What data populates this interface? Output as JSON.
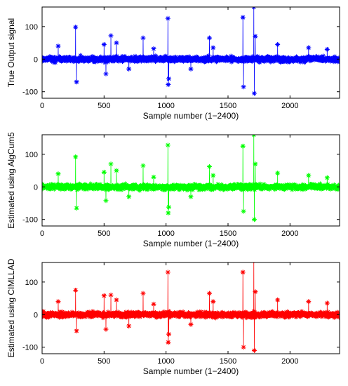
{
  "chart_data": [
    {
      "type": "line",
      "xlabel": "Sample number (1−2400)",
      "ylabel": "True Output signal",
      "xlim": [
        0,
        2400
      ],
      "ylim": [
        -120,
        160
      ],
      "xticks": [
        0,
        500,
        1000,
        1500,
        2000
      ],
      "yticks": [
        -100,
        0,
        100
      ],
      "color": "#0000ff",
      "marker": "*",
      "baseline_amplitude": 12,
      "n_samples": 2400,
      "grid": false,
      "spikes": [
        {
          "x": 270,
          "y": 98
        },
        {
          "x": 278,
          "y": -70
        },
        {
          "x": 500,
          "y": 45
        },
        {
          "x": 515,
          "y": -45
        },
        {
          "x": 555,
          "y": 72
        },
        {
          "x": 600,
          "y": 50
        },
        {
          "x": 815,
          "y": 65
        },
        {
          "x": 1015,
          "y": 125
        },
        {
          "x": 1018,
          "y": -78
        },
        {
          "x": 1022,
          "y": -60
        },
        {
          "x": 1620,
          "y": 128
        },
        {
          "x": 1625,
          "y": -85
        },
        {
          "x": 1708,
          "y": 160
        },
        {
          "x": 1712,
          "y": -105
        },
        {
          "x": 1720,
          "y": 70
        },
        {
          "x": 1350,
          "y": 65
        },
        {
          "x": 1380,
          "y": 35
        },
        {
          "x": 2150,
          "y": 35
        },
        {
          "x": 130,
          "y": 40
        },
        {
          "x": 900,
          "y": 32
        },
        {
          "x": 1200,
          "y": -30
        },
        {
          "x": 1900,
          "y": 45
        },
        {
          "x": 2300,
          "y": 30
        },
        {
          "x": 700,
          "y": -30
        }
      ]
    },
    {
      "type": "line",
      "xlabel": "Sample number (1−2400)",
      "ylabel": "Estimated using AlgCum5",
      "xlim": [
        0,
        2400
      ],
      "ylim": [
        -120,
        160
      ],
      "xticks": [
        0,
        500,
        1000,
        1500,
        2000
      ],
      "yticks": [
        -100,
        0,
        100
      ],
      "color": "#00ff00",
      "marker": "*",
      "baseline_amplitude": 12,
      "n_samples": 2400,
      "grid": false,
      "spikes": [
        {
          "x": 270,
          "y": 92
        },
        {
          "x": 278,
          "y": -65
        },
        {
          "x": 500,
          "y": 45
        },
        {
          "x": 515,
          "y": -42
        },
        {
          "x": 555,
          "y": 70
        },
        {
          "x": 600,
          "y": 50
        },
        {
          "x": 815,
          "y": 65
        },
        {
          "x": 1015,
          "y": 128
        },
        {
          "x": 1018,
          "y": -80
        },
        {
          "x": 1022,
          "y": -62
        },
        {
          "x": 1620,
          "y": 125
        },
        {
          "x": 1625,
          "y": -75
        },
        {
          "x": 1708,
          "y": 160
        },
        {
          "x": 1712,
          "y": -100
        },
        {
          "x": 1720,
          "y": 70
        },
        {
          "x": 1350,
          "y": 62
        },
        {
          "x": 1380,
          "y": 35
        },
        {
          "x": 2150,
          "y": 35
        },
        {
          "x": 130,
          "y": 40
        },
        {
          "x": 900,
          "y": 30
        },
        {
          "x": 1200,
          "y": -30
        },
        {
          "x": 1900,
          "y": 42
        },
        {
          "x": 2300,
          "y": 28
        },
        {
          "x": 700,
          "y": -30
        }
      ]
    },
    {
      "type": "line",
      "xlabel": "Sample number (1−2400)",
      "ylabel": "Estimated using CIMLLAD",
      "xlim": [
        0,
        2400
      ],
      "ylim": [
        -120,
        160
      ],
      "xticks": [
        0,
        500,
        1000,
        1500,
        2000
      ],
      "yticks": [
        -100,
        0,
        100
      ],
      "color": "#ff0000",
      "marker": "*",
      "baseline_amplitude": 12,
      "n_samples": 2400,
      "grid": false,
      "spikes": [
        {
          "x": 270,
          "y": 75
        },
        {
          "x": 278,
          "y": -50
        },
        {
          "x": 500,
          "y": 58
        },
        {
          "x": 515,
          "y": -45
        },
        {
          "x": 555,
          "y": 60
        },
        {
          "x": 600,
          "y": 45
        },
        {
          "x": 815,
          "y": 65
        },
        {
          "x": 1015,
          "y": 130
        },
        {
          "x": 1018,
          "y": -85
        },
        {
          "x": 1022,
          "y": -60
        },
        {
          "x": 1620,
          "y": 130
        },
        {
          "x": 1625,
          "y": -100
        },
        {
          "x": 1708,
          "y": 165
        },
        {
          "x": 1712,
          "y": -110
        },
        {
          "x": 1720,
          "y": 70
        },
        {
          "x": 1350,
          "y": 65
        },
        {
          "x": 1380,
          "y": 40
        },
        {
          "x": 2150,
          "y": 40
        },
        {
          "x": 130,
          "y": 40
        },
        {
          "x": 900,
          "y": 32
        },
        {
          "x": 1200,
          "y": -30
        },
        {
          "x": 1900,
          "y": 45
        },
        {
          "x": 2300,
          "y": 35
        },
        {
          "x": 700,
          "y": -35
        }
      ]
    }
  ]
}
